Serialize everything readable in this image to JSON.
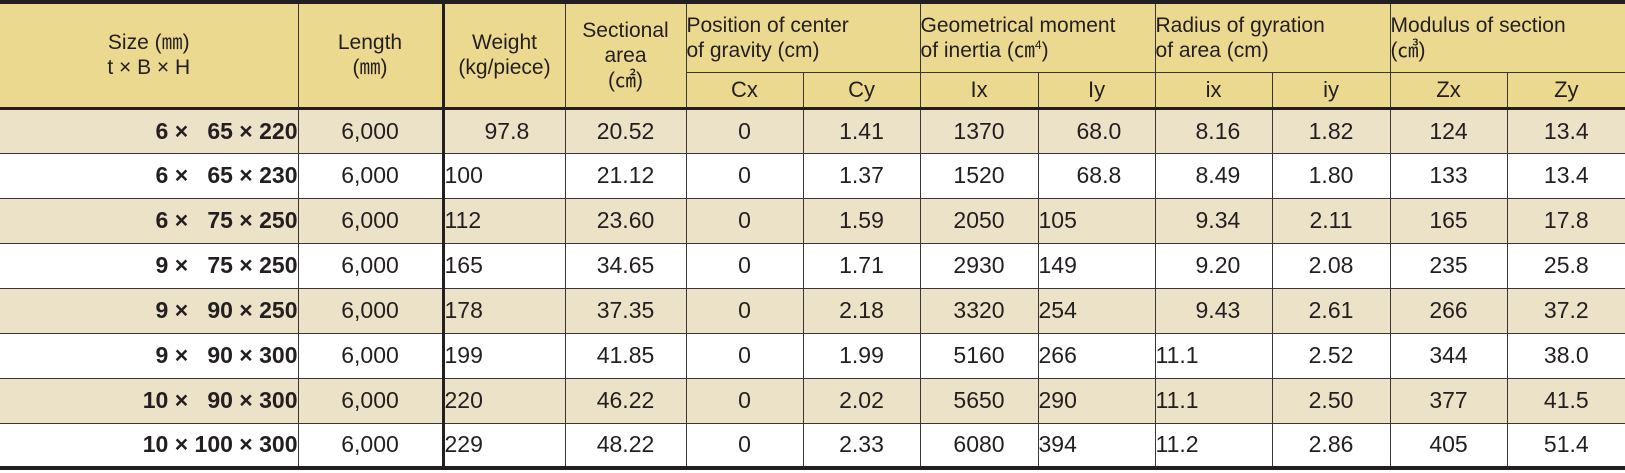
{
  "header": {
    "size_line1": "Size (㎜)",
    "size_line2": "t × B × H",
    "length_line1": "Length",
    "length_line2": "(㎜)",
    "weight_line1": "Weight",
    "weight_line2": "(kg/piece)",
    "area_line1": "Sectional",
    "area_line2": "area",
    "area_line3": "(㎠)",
    "cog_line1": "Position of center",
    "cog_line2": "of gravity (cm)",
    "inertia_line1": "Geometrical moment",
    "inertia_line2": "of inertia (㎝",
    "inertia_sup": "4",
    "inertia_close": ")",
    "gyration_line1": "Radius of gyration",
    "gyration_line2": "of area (cm)",
    "modulus_line1": "Modulus of section",
    "modulus_line2": "(㎤)",
    "sub": [
      "Cx",
      "Cy",
      "Ix",
      "Iy",
      "ix",
      "iy",
      "Zx",
      "Zy"
    ]
  },
  "rows": [
    {
      "size": "6 ×   65 × 220",
      "length": "6,000",
      "weight": "97.8",
      "area": "20.52",
      "cx": "0",
      "cy": "1.41",
      "Ix": "1370",
      "Iy": "68.0",
      "ix": "8.16",
      "iy": "1.82",
      "Zx": "124",
      "Zy": "13.4"
    },
    {
      "size": "6 ×   65 × 230",
      "length": "6,000",
      "weight": "100",
      "area": "21.12",
      "cx": "0",
      "cy": "1.37",
      "Ix": "1520",
      "Iy": "68.8",
      "ix": "8.49",
      "iy": "1.80",
      "Zx": "133",
      "Zy": "13.4"
    },
    {
      "size": "6 ×   75 × 250",
      "length": "6,000",
      "weight": "112",
      "area": "23.60",
      "cx": "0",
      "cy": "1.59",
      "Ix": "2050",
      "Iy": "105",
      "ix": "9.34",
      "iy": "2.11",
      "Zx": "165",
      "Zy": "17.8"
    },
    {
      "size": "9 ×   75 × 250",
      "length": "6,000",
      "weight": "165",
      "area": "34.65",
      "cx": "0",
      "cy": "1.71",
      "Ix": "2930",
      "Iy": "149",
      "ix": "9.20",
      "iy": "2.08",
      "Zx": "235",
      "Zy": "25.8"
    },
    {
      "size": "9 ×   90 × 250",
      "length": "6,000",
      "weight": "178",
      "area": "37.35",
      "cx": "0",
      "cy": "2.18",
      "Ix": "3320",
      "Iy": "254",
      "ix": "9.43",
      "iy": "2.61",
      "Zx": "266",
      "Zy": "37.2"
    },
    {
      "size": "9 ×   90 × 300",
      "length": "6,000",
      "weight": "199",
      "area": "41.85",
      "cx": "0",
      "cy": "1.99",
      "Ix": "5160",
      "Iy": "266",
      "ix": "11.1",
      "iy": "2.52",
      "Zx": "344",
      "Zy": "38.0"
    },
    {
      "size": "10 ×   90 × 300",
      "length": "6,000",
      "weight": "220",
      "area": "46.22",
      "cx": "0",
      "cy": "2.02",
      "Ix": "5650",
      "Iy": "290",
      "ix": "11.1",
      "iy": "2.50",
      "Zx": "377",
      "Zy": "41.5"
    },
    {
      "size": "10 × 100 × 300",
      "length": "6,000",
      "weight": "229",
      "area": "48.22",
      "cx": "0",
      "cy": "2.33",
      "Ix": "6080",
      "Iy": "394",
      "ix": "11.2",
      "iy": "2.86",
      "Zx": "405",
      "Zy": "51.4"
    }
  ],
  "colors": {
    "header_bg": "#ecd990",
    "row_alt_bg": "#ebe2c7",
    "row_bg": "#ffffff",
    "rule": "#231f20"
  }
}
